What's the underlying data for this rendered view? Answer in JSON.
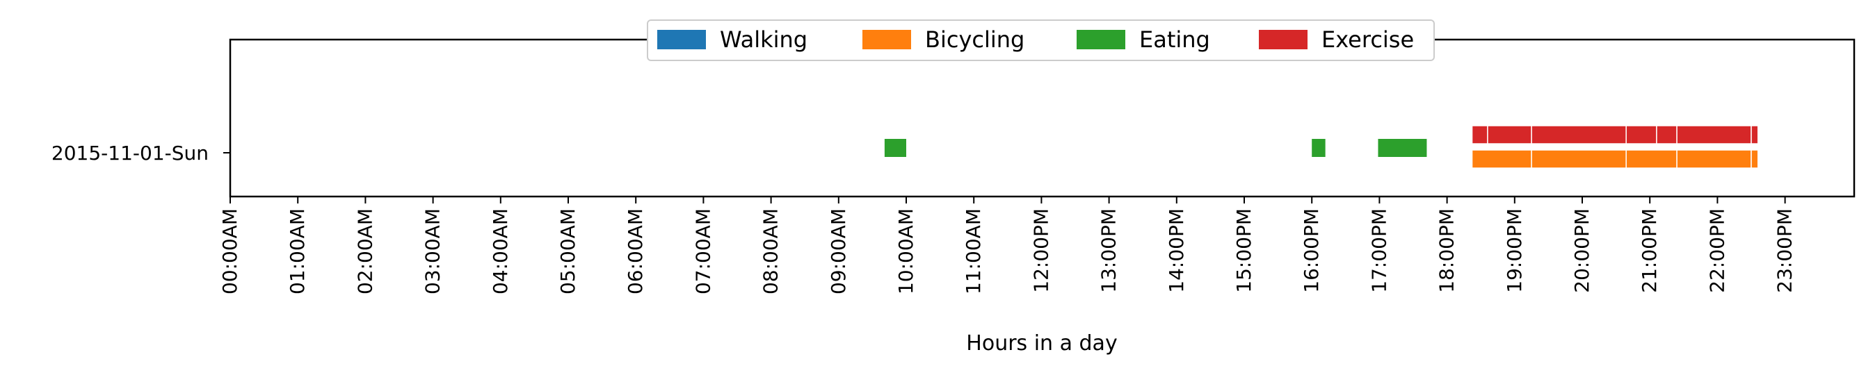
{
  "chart_data": {
    "type": "timeline",
    "xlabel": "Hours in a day",
    "row_label": "2015-11-01-Sun",
    "x_range_hours": [
      0,
      24
    ],
    "x_ticks": [
      "00:00AM",
      "01:00AM",
      "02:00AM",
      "03:00AM",
      "04:00AM",
      "05:00AM",
      "06:00AM",
      "07:00AM",
      "08:00AM",
      "09:00AM",
      "10:00AM",
      "11:00AM",
      "12:00PM",
      "13:00PM",
      "14:00PM",
      "15:00PM",
      "16:00PM",
      "17:00PM",
      "18:00PM",
      "19:00PM",
      "20:00PM",
      "21:00PM",
      "22:00PM",
      "23:00PM"
    ],
    "legend_position": "top-center",
    "series": [
      {
        "name": "Walking",
        "color": "#1f77b4",
        "intervals": []
      },
      {
        "name": "Bicycling",
        "color": "#ff7f0e",
        "intervals": [
          [
            18.37,
            19.25
          ],
          [
            19.25,
            20.65
          ],
          [
            20.65,
            21.4
          ],
          [
            21.4,
            22.5
          ],
          [
            22.5,
            22.6
          ]
        ]
      },
      {
        "name": "Eating",
        "color": "#2ca02c",
        "intervals": [
          [
            9.68,
            10.0
          ],
          [
            16.0,
            16.2
          ],
          [
            16.98,
            17.7
          ]
        ]
      },
      {
        "name": "Exercise",
        "color": "#d62728",
        "intervals": [
          [
            18.37,
            18.6
          ],
          [
            18.6,
            19.25
          ],
          [
            19.25,
            20.65
          ],
          [
            20.65,
            21.1
          ],
          [
            21.1,
            21.4
          ],
          [
            21.4,
            22.5
          ],
          [
            22.5,
            22.6
          ]
        ]
      }
    ]
  }
}
